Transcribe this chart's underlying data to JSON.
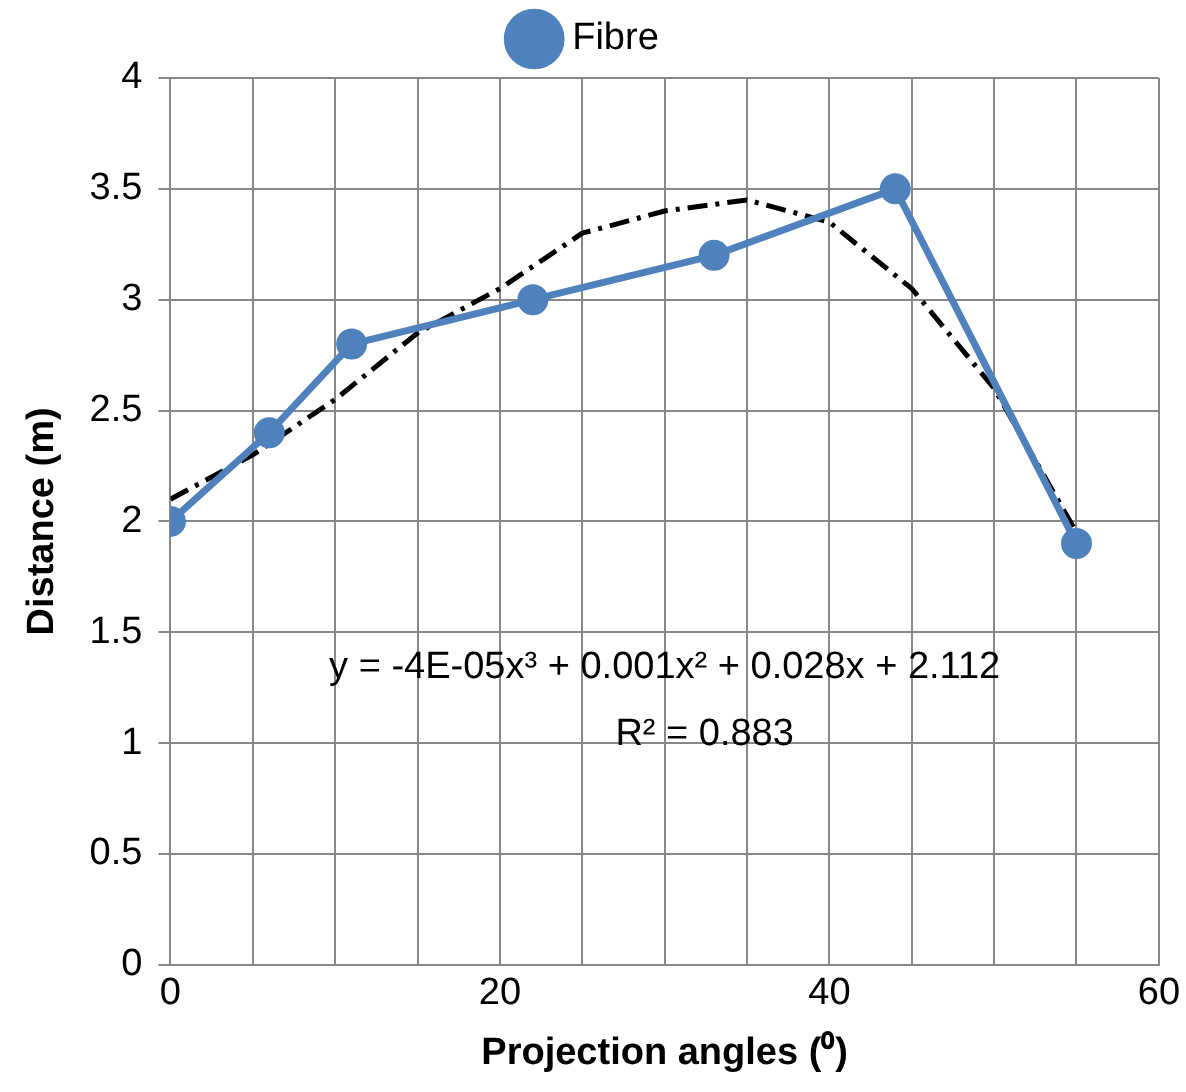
{
  "chart_data": {
    "type": "line",
    "xlabel": "Projection angles (⁰)",
    "ylabel": "Distance (m)",
    "xlim": [
      0,
      60
    ],
    "xticks": [
      0,
      {
        "value": 5,
        "label": null
      },
      {
        "value": 10,
        "label": null
      },
      {
        "value": 15,
        "label": null
      },
      20,
      {
        "value": 25,
        "label": null
      },
      {
        "value": 30,
        "label": null
      },
      {
        "value": 35,
        "label": null
      },
      40,
      {
        "value": 45,
        "label": null
      },
      {
        "value": 50,
        "label": null
      },
      {
        "value": 55,
        "label": null
      },
      60
    ],
    "ylim": [
      0,
      4
    ],
    "yticks": [
      0,
      0.5,
      1,
      1.5,
      2,
      2.5,
      3,
      3.5,
      4
    ],
    "grid": true,
    "legend": "top",
    "series": [
      {
        "name": "Fibre",
        "color": "#4f81bd",
        "marker": "circle",
        "line_style": "solid",
        "x": [
          0,
          6,
          11,
          22,
          33,
          44,
          55
        ],
        "values": [
          2,
          2.4,
          2.8,
          3,
          3.2,
          3.5,
          1.9
        ]
      },
      {
        "color": "#000000",
        "marker": "none",
        "line_style": "dashed",
        "x": [
          0,
          5,
          10,
          15,
          20,
          25,
          30,
          35,
          40,
          45,
          50,
          55
        ],
        "values": [
          2.1,
          2.3,
          2.55,
          2.85,
          3.05,
          3.3,
          3.4,
          3.45,
          3.35,
          3.05,
          2.6,
          1.95
        ]
      }
    ],
    "annotations": [
      "y = -4E-05x³ + 0.001x² + 0.028x + 2.112",
      "R² = 0.883"
    ]
  }
}
